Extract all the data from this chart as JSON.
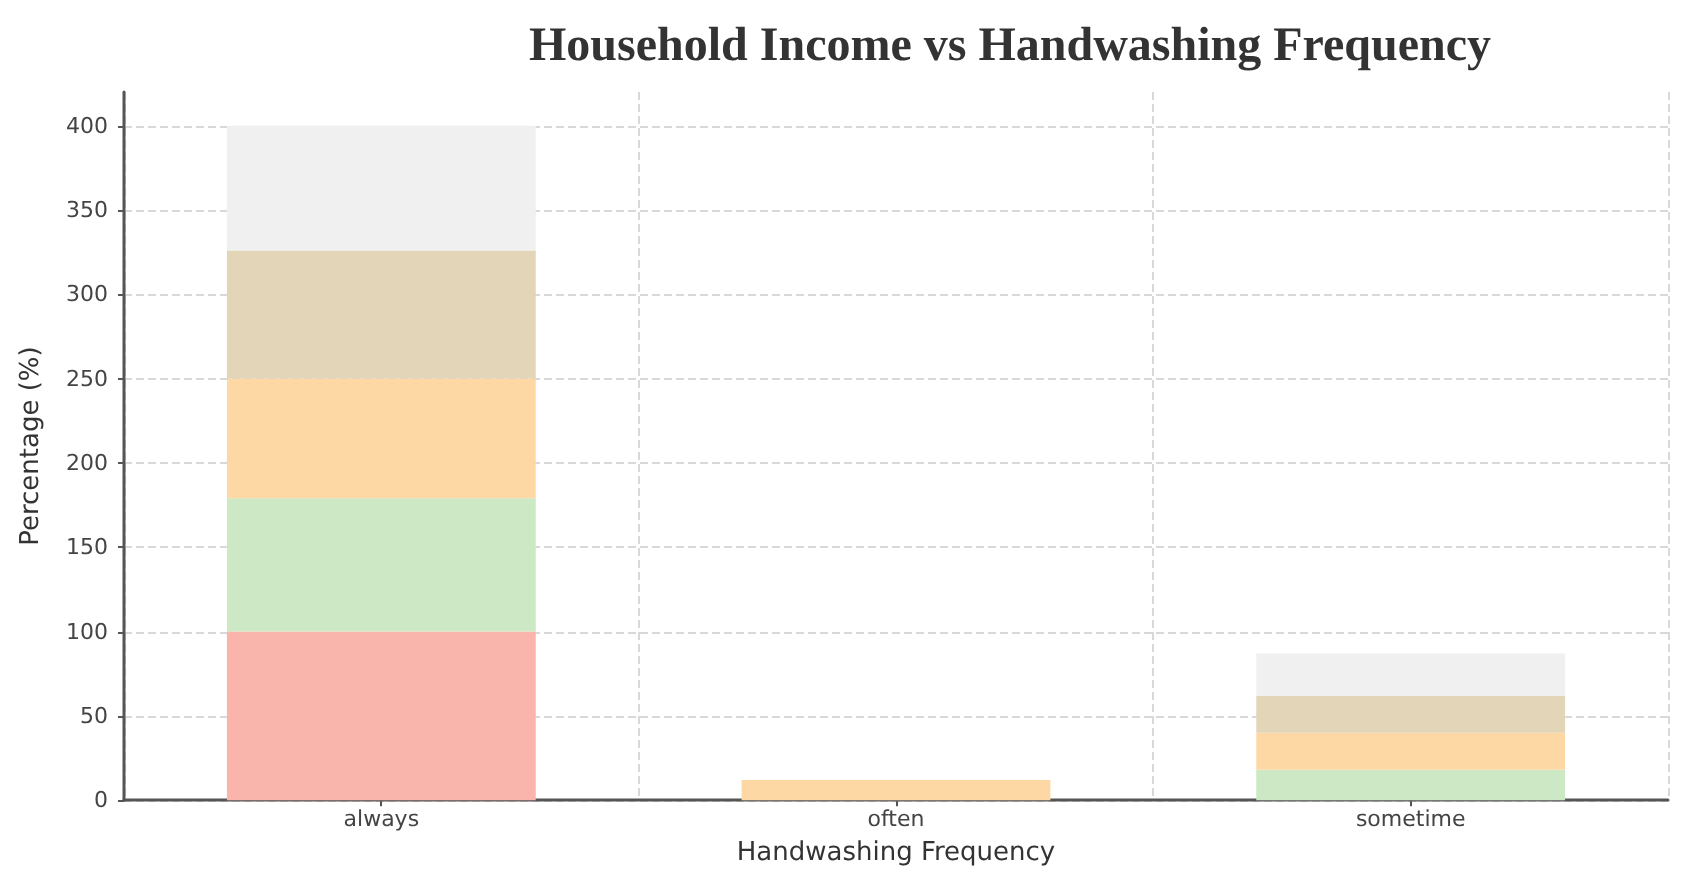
{
  "chart_data": {
    "type": "bar",
    "title": "Household Income vs Handwashing Frequency",
    "xlabel": "Handwashing Frequency",
    "ylabel": "Percentage (%)",
    "categories": [
      "always",
      "often",
      "sometime"
    ],
    "stacked": true,
    "series": [
      {
        "color": "#f9b4ab",
        "values": [
          100,
          0,
          0
        ]
      },
      {
        "color": "#cce8c4",
        "values": [
          79,
          0,
          18
        ]
      },
      {
        "color": "#fed8a4",
        "values": [
          71,
          12,
          22
        ]
      },
      {
        "color": "#e3d5b8",
        "values": [
          76,
          0,
          22
        ]
      },
      {
        "color": "#f0f0f0",
        "values": [
          74,
          null,
          25
        ]
      }
    ],
    "ylim": [
      0,
      420
    ],
    "yticks": [
      0,
      50,
      100,
      150,
      200,
      250,
      300,
      350,
      400
    ],
    "grid": true
  }
}
